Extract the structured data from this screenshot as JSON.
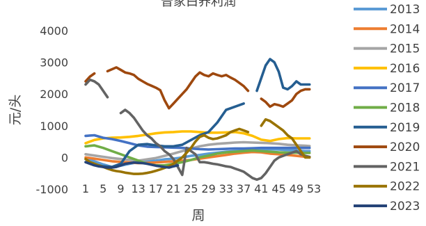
{
  "chart_data": {
    "type": "line",
    "title": "普家白养利润",
    "xlabel": "周",
    "ylabel": "元/头",
    "ylim": [
      -1000,
      4000
    ],
    "yticks": [
      -1000,
      0,
      1000,
      2000,
      3000,
      4000
    ],
    "xlim": [
      1,
      53
    ],
    "xtick_labels": [
      "1",
      "5",
      "9",
      "13",
      "17",
      "21",
      "25",
      "29",
      "33",
      "37",
      "41",
      "45",
      "49",
      "53"
    ],
    "xtick_positions": [
      1,
      5,
      9,
      13,
      17,
      21,
      25,
      29,
      33,
      37,
      41,
      45,
      49,
      53
    ],
    "grid": false,
    "legend_position": "right",
    "series": [
      {
        "name": "2013",
        "color": "#5B9BD5",
        "x": [
          1,
          3,
          5,
          7,
          9,
          11,
          13,
          15,
          17,
          19,
          21,
          23,
          25,
          27,
          29,
          31,
          33,
          35,
          37,
          39,
          41,
          43,
          45,
          47,
          49,
          51,
          52
        ],
        "y": [
          -50,
          -120,
          -220,
          -300,
          -260,
          -200,
          -150,
          -120,
          -100,
          -60,
          -40,
          0,
          50,
          80,
          120,
          150,
          180,
          200,
          220,
          230,
          250,
          260,
          250,
          230,
          220,
          200,
          200
        ]
      },
      {
        "name": "2014",
        "color": "#ED7D31",
        "x": [
          1,
          3,
          5,
          7,
          9,
          11,
          13,
          15,
          17,
          19,
          21,
          23,
          25,
          27,
          29,
          31,
          33,
          35,
          37,
          39,
          41,
          43,
          45,
          47,
          49,
          51,
          52
        ],
        "y": [
          0,
          -40,
          -80,
          -120,
          -140,
          -160,
          -180,
          -170,
          -160,
          -140,
          -120,
          -100,
          -80,
          -40,
          0,
          40,
          80,
          120,
          150,
          170,
          160,
          120,
          100,
          80,
          50,
          20,
          0
        ]
      },
      {
        "name": "2015",
        "color": "#A5A5A5",
        "x": [
          1,
          3,
          5,
          7,
          9,
          11,
          13,
          15,
          17,
          19,
          21,
          23,
          25,
          27,
          29,
          31,
          33,
          35,
          37,
          39,
          41,
          43,
          45,
          47,
          49,
          51,
          52
        ],
        "y": [
          100,
          60,
          20,
          -20,
          -50,
          -80,
          -100,
          -60,
          -20,
          50,
          120,
          200,
          280,
          350,
          400,
          430,
          450,
          470,
          480,
          470,
          460,
          450,
          430,
          400,
          380,
          370,
          360
        ]
      },
      {
        "name": "2016",
        "color": "#FFC000",
        "x": [
          1,
          3,
          5,
          7,
          9,
          11,
          13,
          15,
          17,
          19,
          21,
          23,
          25,
          27,
          29,
          31,
          33,
          35,
          37,
          39,
          41,
          43,
          45,
          47,
          49,
          51,
          52
        ],
        "y": [
          450,
          550,
          600,
          620,
          630,
          650,
          680,
          720,
          760,
          790,
          800,
          820,
          820,
          800,
          780,
          780,
          790,
          800,
          760,
          680,
          560,
          520,
          580,
          610,
          600,
          600,
          600
        ]
      },
      {
        "name": "2017",
        "color": "#4472C4",
        "x": [
          1,
          3,
          5,
          7,
          9,
          11,
          13,
          15,
          17,
          19,
          21,
          23,
          25,
          27,
          29,
          31,
          33,
          35,
          37,
          39,
          41,
          43,
          45,
          47,
          49,
          51,
          52
        ],
        "y": [
          680,
          700,
          620,
          580,
          520,
          450,
          380,
          340,
          330,
          320,
          310,
          300,
          280,
          260,
          250,
          260,
          270,
          280,
          280,
          290,
          300,
          300,
          300,
          300,
          300,
          300,
          300
        ]
      },
      {
        "name": "2018",
        "color": "#70AD47",
        "x": [
          1,
          3,
          5,
          7,
          9,
          11,
          13,
          15,
          17,
          19,
          21,
          23,
          25,
          27,
          29,
          31,
          33,
          35,
          37,
          39,
          41,
          43,
          45,
          47,
          49,
          51,
          52
        ],
        "y": [
          350,
          380,
          300,
          200,
          100,
          0,
          -100,
          -200,
          -250,
          -250,
          -200,
          -150,
          -80,
          0,
          60,
          120,
          160,
          180,
          200,
          220,
          200,
          180,
          160,
          150,
          150,
          140,
          140
        ]
      },
      {
        "name": "2019",
        "color": "#255E91",
        "x": [
          1,
          3,
          5,
          7,
          9,
          11,
          13,
          15,
          17,
          19,
          21,
          23,
          25,
          27,
          29,
          31,
          33,
          35,
          37,
          39,
          40,
          41,
          42,
          43,
          44,
          45,
          46,
          47,
          48,
          49,
          50,
          51,
          52
        ],
        "y": [
          -150,
          -220,
          -280,
          -300,
          -200,
          200,
          400,
          420,
          380,
          350,
          350,
          400,
          550,
          700,
          800,
          1100,
          1500,
          1600,
          1700,
          null,
          2100,
          2500,
          2900,
          3100,
          3000,
          2700,
          2200,
          2150,
          2250,
          2400,
          2300,
          2300,
          2300
        ]
      },
      {
        "name": "2020",
        "color": "#9E480E",
        "x": [
          1,
          2,
          3,
          4,
          5,
          6,
          7,
          8,
          9,
          10,
          11,
          12,
          13,
          14,
          15,
          16,
          17,
          18,
          19,
          20,
          21,
          22,
          23,
          24,
          25,
          26,
          27,
          28,
          29,
          30,
          31,
          32,
          33,
          34,
          35,
          36,
          37,
          38,
          39,
          40,
          41,
          42,
          43,
          44,
          45,
          46,
          47,
          48,
          49,
          50,
          51,
          52
        ],
        "y": [
          2400,
          2550,
          2650,
          null,
          null,
          2720,
          2780,
          2840,
          2760,
          2680,
          2650,
          2600,
          2480,
          2400,
          2320,
          2260,
          2200,
          2120,
          1800,
          1550,
          1700,
          1850,
          2000,
          2150,
          2350,
          2550,
          2680,
          2600,
          2560,
          2650,
          2600,
          2560,
          2600,
          2520,
          2450,
          2350,
          2250,
          2100,
          null,
          null,
          1850,
          1750,
          1600,
          1680,
          1650,
          1600,
          1700,
          1800,
          2000,
          2100,
          2150,
          2150
        ]
      },
      {
        "name": "2021",
        "color": "#636363",
        "x": [
          1,
          2,
          3,
          4,
          5,
          6,
          7,
          8,
          9,
          10,
          11,
          12,
          13,
          14,
          15,
          16,
          17,
          18,
          19,
          20,
          21,
          22,
          23,
          24,
          25,
          26,
          27,
          28,
          29,
          30,
          31,
          32,
          33,
          34,
          35,
          36,
          37,
          38,
          39,
          40,
          41,
          42,
          43,
          44,
          45,
          46,
          47,
          48,
          49,
          50,
          51,
          52
        ],
        "y": [
          2300,
          2450,
          2400,
          2300,
          2100,
          1900,
          null,
          null,
          1400,
          1500,
          1400,
          1250,
          1050,
          850,
          700,
          600,
          450,
          350,
          200,
          100,
          -50,
          -300,
          -550,
          300,
          200,
          100,
          -150,
          -150,
          -170,
          -200,
          -220,
          -250,
          -280,
          -300,
          -350,
          -400,
          -450,
          -550,
          -650,
          -700,
          -650,
          -500,
          -300,
          -100,
          0,
          50,
          100,
          150,
          200,
          100,
          50,
          20
        ]
      },
      {
        "name": "2022",
        "color": "#997300",
        "x": [
          1,
          2,
          3,
          4,
          5,
          6,
          7,
          8,
          9,
          10,
          11,
          12,
          13,
          14,
          15,
          16,
          17,
          18,
          19,
          20,
          21,
          22,
          23,
          24,
          25,
          26,
          27,
          28,
          29,
          30,
          31,
          32,
          33,
          34,
          35,
          36,
          37,
          38,
          39,
          40,
          41,
          42,
          43,
          44,
          45,
          46,
          47,
          48,
          49,
          50,
          51,
          52
        ],
        "y": [
          -50,
          -150,
          -200,
          -250,
          -300,
          -350,
          -400,
          -430,
          -450,
          -480,
          -500,
          -520,
          -520,
          -510,
          -490,
          -460,
          -420,
          -380,
          -330,
          -280,
          -200,
          -100,
          0,
          150,
          300,
          500,
          650,
          700,
          620,
          580,
          600,
          650,
          700,
          800,
          850,
          900,
          850,
          800,
          null,
          null,
          1000,
          1200,
          1150,
          1050,
          950,
          850,
          700,
          600,
          400,
          200,
          0,
          0
        ]
      },
      {
        "name": "2023",
        "color": "#264478",
        "x": [
          1,
          2,
          3,
          4,
          5,
          6,
          7,
          8,
          9,
          10,
          11,
          12,
          13,
          14,
          15,
          16,
          17,
          18,
          19,
          20,
          21,
          22
        ],
        "y": [
          -150,
          -200,
          -250,
          -280,
          -300,
          -320,
          -320,
          -300,
          -250,
          -200,
          -180,
          -160,
          -170,
          -180,
          -200,
          -230,
          -260,
          -280,
          -300,
          -320,
          -280,
          -250
        ]
      }
    ]
  }
}
